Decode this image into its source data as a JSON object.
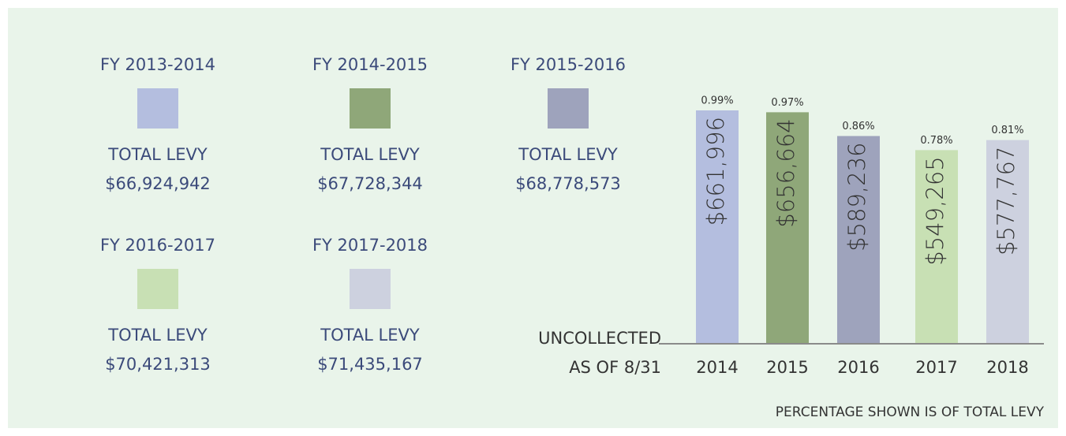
{
  "chart_data": {
    "type": "bar",
    "categories": [
      "2014",
      "2015",
      "2016",
      "2017",
      "2018"
    ],
    "values": [
      661996,
      656664,
      589236,
      549265,
      577767
    ],
    "value_labels": [
      "$661,996",
      "$656,664",
      "$589,236",
      "$549,265",
      "$577,767"
    ],
    "percent_labels": [
      "0.99%",
      "0.97%",
      "0.86%",
      "0.78%",
      "0.81%"
    ],
    "colors": [
      "#b4bedf",
      "#8fa779",
      "#9ea3bc",
      "#c8e0b4",
      "#cdd1df"
    ],
    "ylim": [
      0,
      700000
    ],
    "x_label": [
      "UNCOLLECTED",
      "AS OF 8/31"
    ],
    "footnote": "PERCENTAGE SHOWN IS OF TOTAL LEVY",
    "legend_total_label": "TOTAL LEVY",
    "legend": [
      {
        "name": "FY 2013-2014",
        "color": "#b4bedf",
        "total_levy": "$66,924,942"
      },
      {
        "name": "FY 2014-2015",
        "color": "#8fa779",
        "total_levy": "$67,728,344"
      },
      {
        "name": "FY 2015-2016",
        "color": "#9ea3bc",
        "total_levy": "$68,778,573"
      },
      {
        "name": "FY 2016-2017",
        "color": "#c8e0b4",
        "total_levy": "$70,421,313"
      },
      {
        "name": "FY 2017-2018",
        "color": "#cdd1df",
        "total_levy": "$71,435,167"
      }
    ]
  }
}
